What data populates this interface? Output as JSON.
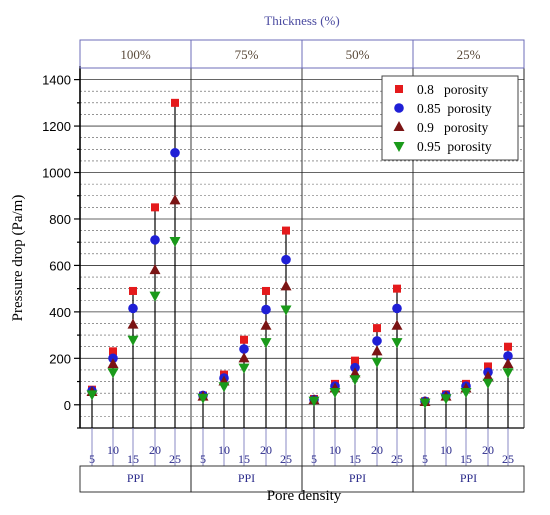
{
  "chart_data": {
    "type": "scatter",
    "top_title": "Thickness (%)",
    "xlabel": "Pore density",
    "ylabel": "Pressure drop (Pa/m)",
    "ylim": [
      -100,
      1450
    ],
    "yticks": [
      0,
      200,
      400,
      600,
      800,
      1000,
      1200,
      1400
    ],
    "groups": [
      "100%",
      "75%",
      "50%",
      "25%"
    ],
    "group_sublabel": "PPI",
    "categories": [
      "5",
      "10",
      "15",
      "20",
      "25"
    ],
    "legend_position": "top-right",
    "grid": true,
    "series": [
      {
        "name": "0.8   porosity",
        "color": "#e41a1c",
        "marker": "square",
        "values": [
          [
            65,
            230,
            490,
            850,
            1300
          ],
          [
            40,
            130,
            280,
            490,
            750
          ],
          [
            25,
            90,
            190,
            330,
            500
          ],
          [
            15,
            45,
            90,
            165,
            250
          ]
        ]
      },
      {
        "name": "0.85  porosity",
        "color": "#1f1fd6",
        "marker": "circle",
        "values": [
          [
            60,
            200,
            415,
            710,
            1085
          ],
          [
            40,
            115,
            240,
            410,
            625
          ],
          [
            22,
            80,
            160,
            275,
            415
          ],
          [
            15,
            40,
            80,
            140,
            210
          ]
        ]
      },
      {
        "name": "0.9   porosity",
        "color": "#7b1414",
        "marker": "triangle-up",
        "values": [
          [
            55,
            175,
            345,
            580,
            880
          ],
          [
            35,
            100,
            200,
            340,
            510
          ],
          [
            20,
            70,
            135,
            230,
            340
          ],
          [
            12,
            35,
            70,
            120,
            175
          ]
        ]
      },
      {
        "name": "0.95  porosity",
        "color": "#1a9a1a",
        "marker": "triangle-down",
        "values": [
          [
            45,
            140,
            280,
            470,
            705
          ],
          [
            30,
            80,
            160,
            270,
            410
          ],
          [
            18,
            55,
            110,
            185,
            270
          ],
          [
            10,
            28,
            55,
            95,
            140
          ]
        ]
      }
    ]
  }
}
